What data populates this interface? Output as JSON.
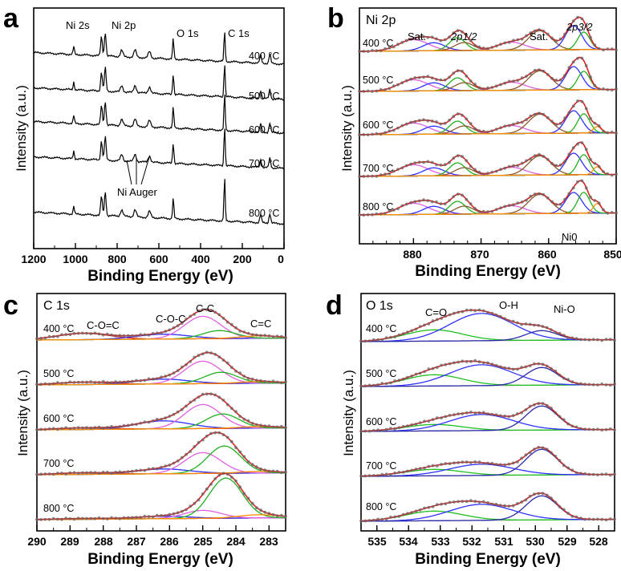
{
  "chart_data": [
    {
      "id": "a",
      "type": "line",
      "panel_label": "a",
      "xlabel": "Binding Energy (eV)",
      "ylabel": "Intensity (a.u.)",
      "xlim": [
        1200,
        0
      ],
      "xticks": [
        "1200",
        "1000",
        "800",
        "600",
        "400",
        "200",
        "0"
      ],
      "peak_labels": [
        "Ni 2s",
        "Ni 2p",
        "O 1s",
        "C 1s"
      ],
      "auger_label": "Ni Auger",
      "series": [
        {
          "name": "400 °C",
          "label": "400 °C"
        },
        {
          "name": "500 °C",
          "label": "500 °C"
        },
        {
          "name": "600 °C",
          "label": "600 °C"
        },
        {
          "name": "700 °C",
          "label": "700 °C"
        },
        {
          "name": "800 °C",
          "label": "800 °C"
        }
      ]
    },
    {
      "id": "b",
      "type": "line",
      "panel_label": "b",
      "title": "Ni 2p",
      "xlabel": "Binding Energy (eV)",
      "ylabel": "Intensity (a.u.)",
      "xlim": [
        888,
        850
      ],
      "xticks": [
        "880",
        "870",
        "860",
        "850"
      ],
      "annotations": [
        "Sat.",
        "2p1/2",
        "Sat.",
        "2p3/2",
        "Ni0"
      ],
      "series": [
        {
          "name": "400 °C",
          "label": "400 °C"
        },
        {
          "name": "500 °C",
          "label": "500 °C"
        },
        {
          "name": "600 °C",
          "label": "600 °C"
        },
        {
          "name": "700 °C",
          "label": "700 °C"
        },
        {
          "name": "800 °C",
          "label": "800 °C"
        }
      ]
    },
    {
      "id": "c",
      "type": "line",
      "panel_label": "c",
      "title": "C 1s",
      "xlabel": "Binding Energy (eV)",
      "ylabel": "Intensity (a.u.)",
      "xlim": [
        290,
        282.5
      ],
      "xticks": [
        "290",
        "289",
        "288",
        "287",
        "286",
        "285",
        "284",
        "283"
      ],
      "annotations": [
        "C-O=C",
        "C-O-C",
        "C-C",
        "C=C"
      ],
      "series": [
        {
          "name": "400 °C",
          "label": "400 °C"
        },
        {
          "name": "500 °C",
          "label": "500 °C"
        },
        {
          "name": "600 °C",
          "label": "600 °C"
        },
        {
          "name": "700 °C",
          "label": "700 °C"
        },
        {
          "name": "800 °C",
          "label": "800 °C"
        }
      ]
    },
    {
      "id": "d",
      "type": "line",
      "panel_label": "d",
      "title": "O 1s",
      "xlabel": "Binding Energy (eV)",
      "ylabel": "Intensity (a.u.)",
      "xlim": [
        535.5,
        527.5
      ],
      "xticks": [
        "535",
        "534",
        "533",
        "532",
        "531",
        "530",
        "529",
        "528"
      ],
      "annotations": [
        "C=O",
        "O-H",
        "Ni-O"
      ],
      "series": [
        {
          "name": "400 °C",
          "label": "400 °C"
        },
        {
          "name": "500 °C",
          "label": "500 °C"
        },
        {
          "name": "600 °C",
          "label": "600 °C"
        },
        {
          "name": "700 °C",
          "label": "700 °C"
        },
        {
          "name": "800 °C",
          "label": "800 °C"
        }
      ]
    }
  ]
}
